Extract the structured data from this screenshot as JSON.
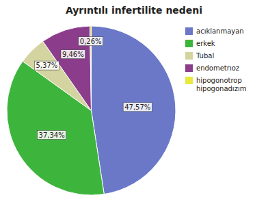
{
  "chart_data": {
    "type": "pie",
    "title": "Ayrıntılı infertilite nedeni",
    "categories": [
      "acıklanmayan",
      "erkek",
      "Tubal",
      "endometrıoz",
      "hipogonotrop\nhipogonadızım"
    ],
    "values": [
      47.57,
      37.34,
      5.37,
      9.46,
      0.26
    ],
    "value_labels": [
      "47,57%",
      "37,34%",
      "5,37%",
      "9,46%",
      "0,26%"
    ],
    "colors": [
      "#6b78c8",
      "#3db53d",
      "#d4d4a0",
      "#8b3d8b",
      "#e8e840"
    ],
    "data_labels": true,
    "legend": "upper right"
  }
}
